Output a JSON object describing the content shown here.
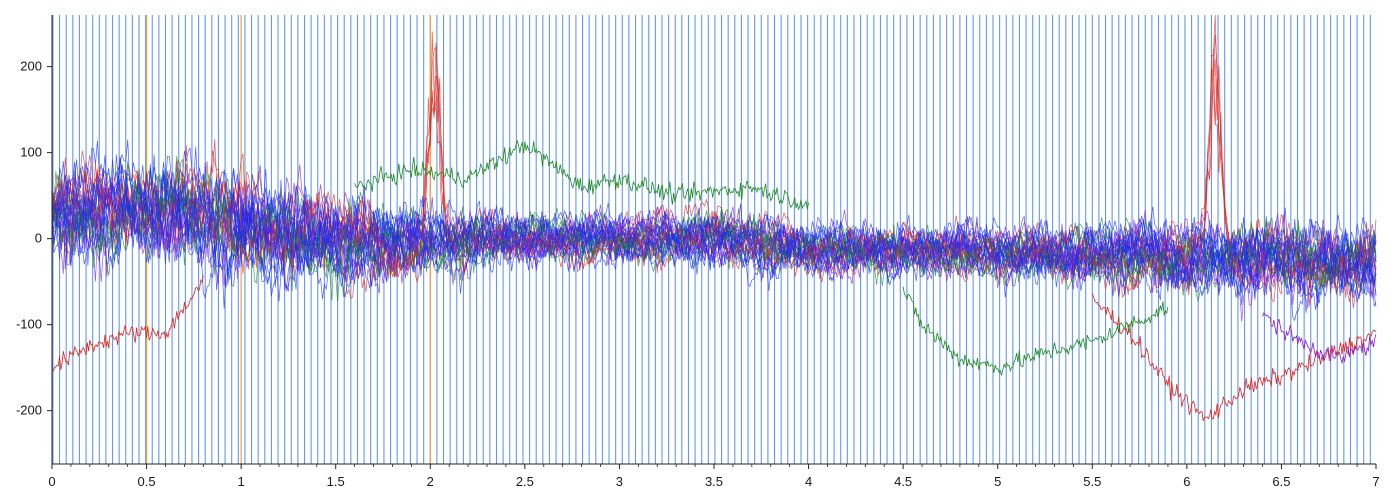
{
  "chart_data": {
    "type": "line",
    "title": "",
    "xlabel": "",
    "ylabel": "",
    "xlim": [
      0,
      7
    ],
    "ylim": [
      -262,
      260
    ],
    "x_ticks": [
      0,
      0.5,
      1,
      1.5,
      2,
      2.5,
      3,
      3.5,
      4,
      4.5,
      5,
      5.5,
      6,
      6.5,
      7
    ],
    "x_tick_labels": [
      "0",
      "0.5",
      "1",
      "1.5",
      "2",
      "2.5",
      "3",
      "3.5",
      "4",
      "4.5",
      "5",
      "5.5",
      "6",
      "6.5",
      "7"
    ],
    "y_ticks": [
      200,
      100,
      0,
      -100,
      -200
    ],
    "y_tick_labels": [
      "200",
      "100",
      "0",
      "-100",
      "-200"
    ],
    "grid": false,
    "legend": "none",
    "colors": {
      "marker_lines": "#4a86e8",
      "orange_markers": "#f0a040",
      "red": "#e0241c",
      "blue": "#1a2cf0",
      "green": "#1a8c1a",
      "purple": "#8a1ac8"
    },
    "event_markers": {
      "blue_interval": 0.035,
      "orange_positions": [
        0.5,
        1.0,
        2.0
      ]
    },
    "traces_description_points": {
      "band_envelope": {
        "x": [
          0,
          0.5,
          1,
          1.5,
          2,
          2.5,
          3,
          3.5,
          4,
          4.5,
          5,
          5.5,
          6,
          6.5,
          7
        ],
        "upper": [
          120,
          130,
          120,
          80,
          60,
          50,
          45,
          55,
          40,
          35,
          35,
          40,
          45,
          50,
          45
        ],
        "lower": [
          -60,
          -50,
          -70,
          -80,
          -60,
          -45,
          -40,
          -50,
          -55,
          -60,
          -60,
          -70,
          -80,
          -90,
          -90
        ]
      },
      "peaks": [
        {
          "x": 2.02,
          "y": 260,
          "color": "red"
        },
        {
          "x": 2.03,
          "y": 190,
          "color": "blue"
        },
        {
          "x": 6.15,
          "y": 260,
          "color": "red"
        },
        {
          "x": 6.16,
          "y": 205,
          "color": "blue"
        }
      ],
      "red_low_trace": {
        "x": [
          0,
          0.2,
          0.4,
          0.6,
          0.7,
          0.8
        ],
        "y": [
          -150,
          -125,
          -110,
          -110,
          -80,
          -50
        ]
      },
      "red_late_trace": {
        "x": [
          5.5,
          5.7,
          5.9,
          6.1,
          6.3,
          6.5,
          6.7,
          7.0
        ],
        "y": [
          -70,
          -110,
          -170,
          -210,
          -175,
          -160,
          -140,
          -110
        ]
      },
      "green_high_trace": {
        "x": [
          1.6,
          1.9,
          2.2,
          2.5,
          2.8,
          3.0,
          3.3,
          3.7,
          4.0
        ],
        "y": [
          60,
          80,
          70,
          110,
          60,
          70,
          50,
          60,
          40
        ]
      },
      "green_low_trace": {
        "x": [
          4.5,
          4.6,
          4.8,
          5.0,
          5.3,
          5.5,
          5.7,
          5.9
        ],
        "y": [
          -60,
          -100,
          -140,
          -150,
          -130,
          -120,
          -100,
          -80
        ]
      },
      "purple_late_trace": {
        "x": [
          6.4,
          6.6,
          6.8,
          7.0
        ],
        "y": [
          -90,
          -120,
          -140,
          -120
        ]
      }
    }
  }
}
